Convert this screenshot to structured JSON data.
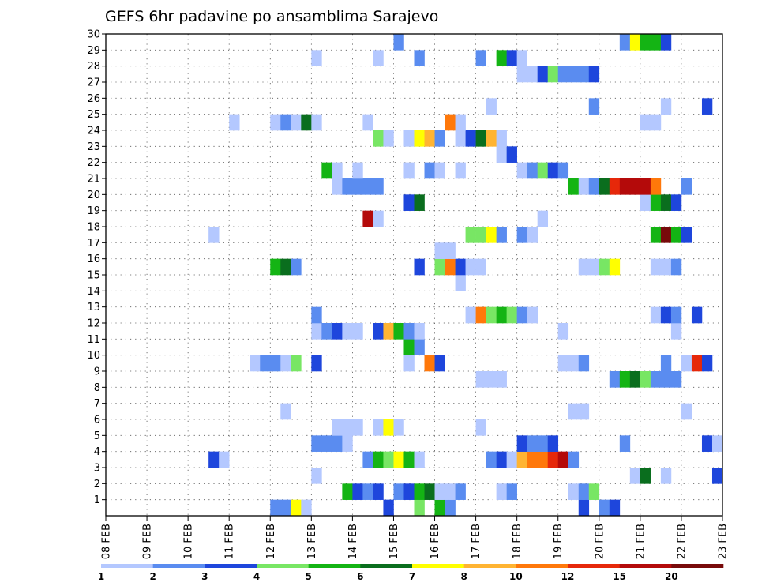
{
  "chart_data": {
    "type": "heatmap",
    "title": "GEFS 6hr padavine po ansamblima Sarajevo",
    "x_tick_labels": [
      "08 FEB",
      "09 FEB",
      "10 FEB",
      "11 FEB",
      "12 FEB",
      "13 FEB",
      "14 FEB",
      "15 FEB",
      "16 FEB",
      "17 FEB",
      "18 FEB",
      "19 FEB",
      "20 FEB",
      "21 FEB",
      "22 FEB",
      "23 FEB"
    ],
    "xlim_days": [
      0,
      15
    ],
    "ylim_members": [
      0,
      30
    ],
    "y_tick_labels": [
      "1",
      "2",
      "3",
      "4",
      "5",
      "6",
      "7",
      "8",
      "9",
      "10",
      "11",
      "12",
      "13",
      "14",
      "15",
      "16",
      "17",
      "18",
      "19",
      "20",
      "21",
      "22",
      "23",
      "24",
      "25",
      "26",
      "27",
      "28",
      "29",
      "30"
    ],
    "grid": true,
    "legend": "bottom",
    "colorbar_labels": [
      "1",
      "2",
      "3",
      "4",
      "5",
      "6",
      "7",
      "8",
      "10",
      "12",
      "15",
      "20"
    ],
    "colors": [
      "#b4c8ff",
      "#5a8cf0",
      "#1e46dc",
      "#78e664",
      "#14b414",
      "#0a6e1e",
      "#ffff00",
      "#ffb432",
      "#ff780a",
      "#e6280a",
      "#b40a0a",
      "#780a0a"
    ],
    "cell_width_days": 0.25,
    "cells": [
      {
        "d": 4.0,
        "m": 0,
        "c": 1
      },
      {
        "d": 4.25,
        "m": 0,
        "c": 1
      },
      {
        "d": 4.5,
        "m": 0,
        "c": 6
      },
      {
        "d": 4.75,
        "m": 0,
        "c": 0
      },
      {
        "d": 6.75,
        "m": 0,
        "c": 2
      },
      {
        "d": 7.5,
        "m": 0,
        "c": 3
      },
      {
        "d": 8.0,
        "m": 0,
        "c": 4
      },
      {
        "d": 8.25,
        "m": 0,
        "c": 1
      },
      {
        "d": 11.5,
        "m": 0,
        "c": 2
      },
      {
        "d": 12.0,
        "m": 0,
        "c": 1
      },
      {
        "d": 12.25,
        "m": 0,
        "c": 2
      },
      {
        "d": 5.75,
        "m": 1,
        "c": 4
      },
      {
        "d": 6.0,
        "m": 1,
        "c": 2
      },
      {
        "d": 6.25,
        "m": 1,
        "c": 1
      },
      {
        "d": 6.5,
        "m": 1,
        "c": 2
      },
      {
        "d": 7.0,
        "m": 1,
        "c": 1
      },
      {
        "d": 7.25,
        "m": 1,
        "c": 2
      },
      {
        "d": 7.5,
        "m": 1,
        "c": 4
      },
      {
        "d": 7.75,
        "m": 1,
        "c": 5
      },
      {
        "d": 8.0,
        "m": 1,
        "c": 0
      },
      {
        "d": 8.25,
        "m": 1,
        "c": 0
      },
      {
        "d": 8.5,
        "m": 1,
        "c": 1
      },
      {
        "d": 9.5,
        "m": 1,
        "c": 0
      },
      {
        "d": 9.75,
        "m": 1,
        "c": 1
      },
      {
        "d": 11.25,
        "m": 1,
        "c": 0
      },
      {
        "d": 11.5,
        "m": 1,
        "c": 1
      },
      {
        "d": 11.75,
        "m": 1,
        "c": 3
      },
      {
        "d": 5.0,
        "m": 2,
        "c": 0
      },
      {
        "d": 12.75,
        "m": 2,
        "c": 0
      },
      {
        "d": 13.0,
        "m": 2,
        "c": 5
      },
      {
        "d": 13.5,
        "m": 2,
        "c": 0
      },
      {
        "d": 14.75,
        "m": 2,
        "c": 2
      },
      {
        "d": 2.5,
        "m": 3,
        "c": 2
      },
      {
        "d": 2.75,
        "m": 3,
        "c": 0
      },
      {
        "d": 6.25,
        "m": 3,
        "c": 1
      },
      {
        "d": 6.5,
        "m": 3,
        "c": 4
      },
      {
        "d": 6.75,
        "m": 3,
        "c": 3
      },
      {
        "d": 7.0,
        "m": 3,
        "c": 6
      },
      {
        "d": 7.25,
        "m": 3,
        "c": 4
      },
      {
        "d": 7.5,
        "m": 3,
        "c": 0
      },
      {
        "d": 9.25,
        "m": 3,
        "c": 1
      },
      {
        "d": 9.5,
        "m": 3,
        "c": 2
      },
      {
        "d": 9.75,
        "m": 3,
        "c": 0
      },
      {
        "d": 10.0,
        "m": 3,
        "c": 7
      },
      {
        "d": 10.25,
        "m": 3,
        "c": 8
      },
      {
        "d": 10.5,
        "m": 3,
        "c": 8
      },
      {
        "d": 10.75,
        "m": 3,
        "c": 9
      },
      {
        "d": 11.0,
        "m": 3,
        "c": 10
      },
      {
        "d": 11.25,
        "m": 3,
        "c": 1
      },
      {
        "d": 5.0,
        "m": 4,
        "c": 1
      },
      {
        "d": 5.25,
        "m": 4,
        "c": 1
      },
      {
        "d": 5.5,
        "m": 4,
        "c": 1
      },
      {
        "d": 5.75,
        "m": 4,
        "c": 0
      },
      {
        "d": 10.0,
        "m": 4,
        "c": 2
      },
      {
        "d": 10.25,
        "m": 4,
        "c": 1
      },
      {
        "d": 10.5,
        "m": 4,
        "c": 1
      },
      {
        "d": 10.75,
        "m": 4,
        "c": 2
      },
      {
        "d": 12.5,
        "m": 4,
        "c": 1
      },
      {
        "d": 14.5,
        "m": 4,
        "c": 2
      },
      {
        "d": 14.75,
        "m": 4,
        "c": 0
      },
      {
        "d": 5.5,
        "m": 5,
        "c": 0
      },
      {
        "d": 5.75,
        "m": 5,
        "c": 0
      },
      {
        "d": 6.0,
        "m": 5,
        "c": 0
      },
      {
        "d": 6.5,
        "m": 5,
        "c": 0
      },
      {
        "d": 6.75,
        "m": 5,
        "c": 6
      },
      {
        "d": 7.0,
        "m": 5,
        "c": 0
      },
      {
        "d": 9.0,
        "m": 5,
        "c": 0
      },
      {
        "d": 4.25,
        "m": 6,
        "c": 0
      },
      {
        "d": 11.25,
        "m": 6,
        "c": 0
      },
      {
        "d": 11.5,
        "m": 6,
        "c": 0
      },
      {
        "d": 14.0,
        "m": 6,
        "c": 0
      },
      {
        "d": 9.0,
        "m": 8,
        "c": 0
      },
      {
        "d": 9.25,
        "m": 8,
        "c": 0
      },
      {
        "d": 9.5,
        "m": 8,
        "c": 0
      },
      {
        "d": 12.25,
        "m": 8,
        "c": 1
      },
      {
        "d": 12.5,
        "m": 8,
        "c": 4
      },
      {
        "d": 12.75,
        "m": 8,
        "c": 5
      },
      {
        "d": 13.0,
        "m": 8,
        "c": 3
      },
      {
        "d": 13.25,
        "m": 8,
        "c": 1
      },
      {
        "d": 13.5,
        "m": 8,
        "c": 1
      },
      {
        "d": 13.75,
        "m": 8,
        "c": 1
      },
      {
        "d": 3.5,
        "m": 9,
        "c": 0
      },
      {
        "d": 3.75,
        "m": 9,
        "c": 1
      },
      {
        "d": 4.0,
        "m": 9,
        "c": 1
      },
      {
        "d": 4.25,
        "m": 9,
        "c": 0
      },
      {
        "d": 4.5,
        "m": 9,
        "c": 3
      },
      {
        "d": 5.0,
        "m": 9,
        "c": 2
      },
      {
        "d": 7.25,
        "m": 9,
        "c": 0
      },
      {
        "d": 7.75,
        "m": 9,
        "c": 8
      },
      {
        "d": 8.0,
        "m": 9,
        "c": 2
      },
      {
        "d": 11.0,
        "m": 9,
        "c": 0
      },
      {
        "d": 11.25,
        "m": 9,
        "c": 0
      },
      {
        "d": 11.5,
        "m": 9,
        "c": 1
      },
      {
        "d": 13.5,
        "m": 9,
        "c": 1
      },
      {
        "d": 14.0,
        "m": 9,
        "c": 0
      },
      {
        "d": 14.25,
        "m": 9,
        "c": 9
      },
      {
        "d": 14.5,
        "m": 9,
        "c": 2
      },
      {
        "d": 7.25,
        "m": 10,
        "c": 4
      },
      {
        "d": 7.5,
        "m": 10,
        "c": 1
      },
      {
        "d": 5.0,
        "m": 11,
        "c": 0
      },
      {
        "d": 5.25,
        "m": 11,
        "c": 1
      },
      {
        "d": 5.5,
        "m": 11,
        "c": 2
      },
      {
        "d": 5.75,
        "m": 11,
        "c": 0
      },
      {
        "d": 6.0,
        "m": 11,
        "c": 0
      },
      {
        "d": 6.5,
        "m": 11,
        "c": 2
      },
      {
        "d": 6.75,
        "m": 11,
        "c": 7
      },
      {
        "d": 7.0,
        "m": 11,
        "c": 4
      },
      {
        "d": 7.25,
        "m": 11,
        "c": 1
      },
      {
        "d": 7.5,
        "m": 11,
        "c": 0
      },
      {
        "d": 11.0,
        "m": 11,
        "c": 0
      },
      {
        "d": 13.75,
        "m": 11,
        "c": 0
      },
      {
        "d": 5.0,
        "m": 12,
        "c": 1
      },
      {
        "d": 8.75,
        "m": 12,
        "c": 0
      },
      {
        "d": 9.0,
        "m": 12,
        "c": 8
      },
      {
        "d": 9.25,
        "m": 12,
        "c": 3
      },
      {
        "d": 9.5,
        "m": 12,
        "c": 4
      },
      {
        "d": 9.75,
        "m": 12,
        "c": 3
      },
      {
        "d": 10.0,
        "m": 12,
        "c": 1
      },
      {
        "d": 10.25,
        "m": 12,
        "c": 0
      },
      {
        "d": 13.25,
        "m": 12,
        "c": 0
      },
      {
        "d": 13.5,
        "m": 12,
        "c": 2
      },
      {
        "d": 13.75,
        "m": 12,
        "c": 1
      },
      {
        "d": 14.25,
        "m": 12,
        "c": 2
      },
      {
        "d": 8.5,
        "m": 14,
        "c": 0
      },
      {
        "d": 4.0,
        "m": 15,
        "c": 4
      },
      {
        "d": 4.25,
        "m": 15,
        "c": 5
      },
      {
        "d": 4.5,
        "m": 15,
        "c": 1
      },
      {
        "d": 7.5,
        "m": 15,
        "c": 2
      },
      {
        "d": 8.0,
        "m": 15,
        "c": 3
      },
      {
        "d": 8.25,
        "m": 15,
        "c": 8
      },
      {
        "d": 8.5,
        "m": 15,
        "c": 2
      },
      {
        "d": 8.75,
        "m": 15,
        "c": 0
      },
      {
        "d": 9.0,
        "m": 15,
        "c": 0
      },
      {
        "d": 11.5,
        "m": 15,
        "c": 0
      },
      {
        "d": 11.75,
        "m": 15,
        "c": 0
      },
      {
        "d": 12.0,
        "m": 15,
        "c": 3
      },
      {
        "d": 12.25,
        "m": 15,
        "c": 6
      },
      {
        "d": 13.25,
        "m": 15,
        "c": 0
      },
      {
        "d": 13.5,
        "m": 15,
        "c": 0
      },
      {
        "d": 13.75,
        "m": 15,
        "c": 1
      },
      {
        "d": 8.0,
        "m": 16,
        "c": 0
      },
      {
        "d": 8.25,
        "m": 16,
        "c": 0
      },
      {
        "d": 2.5,
        "m": 17,
        "c": 0
      },
      {
        "d": 8.75,
        "m": 17,
        "c": 3
      },
      {
        "d": 9.0,
        "m": 17,
        "c": 3
      },
      {
        "d": 9.25,
        "m": 17,
        "c": 6
      },
      {
        "d": 9.5,
        "m": 17,
        "c": 1
      },
      {
        "d": 10.0,
        "m": 17,
        "c": 1
      },
      {
        "d": 10.25,
        "m": 17,
        "c": 0
      },
      {
        "d": 13.25,
        "m": 17,
        "c": 4
      },
      {
        "d": 13.5,
        "m": 17,
        "c": 11
      },
      {
        "d": 13.75,
        "m": 17,
        "c": 4
      },
      {
        "d": 14.0,
        "m": 17,
        "c": 2
      },
      {
        "d": 6.25,
        "m": 18,
        "c": 10
      },
      {
        "d": 6.5,
        "m": 18,
        "c": 0
      },
      {
        "d": 10.5,
        "m": 18,
        "c": 0
      },
      {
        "d": 7.25,
        "m": 19,
        "c": 2
      },
      {
        "d": 7.5,
        "m": 19,
        "c": 5
      },
      {
        "d": 13.0,
        "m": 19,
        "c": 0
      },
      {
        "d": 13.25,
        "m": 19,
        "c": 4
      },
      {
        "d": 13.5,
        "m": 19,
        "c": 5
      },
      {
        "d": 13.75,
        "m": 19,
        "c": 2
      },
      {
        "d": 5.5,
        "m": 20,
        "c": 0
      },
      {
        "d": 5.75,
        "m": 20,
        "c": 1
      },
      {
        "d": 6.0,
        "m": 20,
        "c": 1
      },
      {
        "d": 6.25,
        "m": 20,
        "c": 1
      },
      {
        "d": 6.5,
        "m": 20,
        "c": 1
      },
      {
        "d": 11.25,
        "m": 20,
        "c": 4
      },
      {
        "d": 11.5,
        "m": 20,
        "c": 0
      },
      {
        "d": 11.75,
        "m": 20,
        "c": 1
      },
      {
        "d": 12.0,
        "m": 20,
        "c": 5
      },
      {
        "d": 12.25,
        "m": 20,
        "c": 9
      },
      {
        "d": 12.5,
        "m": 20,
        "c": 10
      },
      {
        "d": 12.75,
        "m": 20,
        "c": 10
      },
      {
        "d": 13.0,
        "m": 20,
        "c": 10
      },
      {
        "d": 13.25,
        "m": 20,
        "c": 8
      },
      {
        "d": 14.0,
        "m": 20,
        "c": 1
      },
      {
        "d": 5.25,
        "m": 21,
        "c": 4
      },
      {
        "d": 5.5,
        "m": 21,
        "c": 0
      },
      {
        "d": 6.0,
        "m": 21,
        "c": 0
      },
      {
        "d": 7.25,
        "m": 21,
        "c": 0
      },
      {
        "d": 7.75,
        "m": 21,
        "c": 1
      },
      {
        "d": 8.0,
        "m": 21,
        "c": 0
      },
      {
        "d": 8.5,
        "m": 21,
        "c": 0
      },
      {
        "d": 10.0,
        "m": 21,
        "c": 0
      },
      {
        "d": 10.25,
        "m": 21,
        "c": 1
      },
      {
        "d": 10.5,
        "m": 21,
        "c": 3
      },
      {
        "d": 10.75,
        "m": 21,
        "c": 2
      },
      {
        "d": 11.0,
        "m": 21,
        "c": 1
      },
      {
        "d": 9.5,
        "m": 22,
        "c": 0
      },
      {
        "d": 9.75,
        "m": 22,
        "c": 2
      },
      {
        "d": 6.5,
        "m": 23,
        "c": 3
      },
      {
        "d": 6.75,
        "m": 23,
        "c": 0
      },
      {
        "d": 7.25,
        "m": 23,
        "c": 0
      },
      {
        "d": 7.5,
        "m": 23,
        "c": 6
      },
      {
        "d": 7.75,
        "m": 23,
        "c": 7
      },
      {
        "d": 8.0,
        "m": 23,
        "c": 1
      },
      {
        "d": 8.5,
        "m": 23,
        "c": 0
      },
      {
        "d": 8.75,
        "m": 23,
        "c": 2
      },
      {
        "d": 9.0,
        "m": 23,
        "c": 5
      },
      {
        "d": 9.25,
        "m": 23,
        "c": 7
      },
      {
        "d": 9.5,
        "m": 23,
        "c": 0
      },
      {
        "d": 3.0,
        "m": 24,
        "c": 0
      },
      {
        "d": 4.0,
        "m": 24,
        "c": 0
      },
      {
        "d": 4.25,
        "m": 24,
        "c": 1
      },
      {
        "d": 4.5,
        "m": 24,
        "c": 0
      },
      {
        "d": 4.75,
        "m": 24,
        "c": 5
      },
      {
        "d": 5.0,
        "m": 24,
        "c": 0
      },
      {
        "d": 6.25,
        "m": 24,
        "c": 0
      },
      {
        "d": 8.25,
        "m": 24,
        "c": 8
      },
      {
        "d": 8.5,
        "m": 24,
        "c": 0
      },
      {
        "d": 13.0,
        "m": 24,
        "c": 0
      },
      {
        "d": 13.25,
        "m": 24,
        "c": 0
      },
      {
        "d": 9.25,
        "m": 25,
        "c": 0
      },
      {
        "d": 11.75,
        "m": 25,
        "c": 1
      },
      {
        "d": 13.5,
        "m": 25,
        "c": 0
      },
      {
        "d": 14.5,
        "m": 25,
        "c": 2
      },
      {
        "d": 10.0,
        "m": 27,
        "c": 0
      },
      {
        "d": 10.25,
        "m": 27,
        "c": 0
      },
      {
        "d": 10.5,
        "m": 27,
        "c": 2
      },
      {
        "d": 10.75,
        "m": 27,
        "c": 3
      },
      {
        "d": 11.0,
        "m": 27,
        "c": 1
      },
      {
        "d": 11.25,
        "m": 27,
        "c": 1
      },
      {
        "d": 11.5,
        "m": 27,
        "c": 1
      },
      {
        "d": 11.75,
        "m": 27,
        "c": 2
      },
      {
        "d": 5.0,
        "m": 28,
        "c": 0
      },
      {
        "d": 6.5,
        "m": 28,
        "c": 0
      },
      {
        "d": 7.5,
        "m": 28,
        "c": 1
      },
      {
        "d": 9.0,
        "m": 28,
        "c": 1
      },
      {
        "d": 9.5,
        "m": 28,
        "c": 4
      },
      {
        "d": 9.75,
        "m": 28,
        "c": 2
      },
      {
        "d": 10.0,
        "m": 28,
        "c": 0
      },
      {
        "d": 7.0,
        "m": 29,
        "c": 1
      },
      {
        "d": 12.5,
        "m": 29,
        "c": 1
      },
      {
        "d": 12.75,
        "m": 29,
        "c": 6
      },
      {
        "d": 13.0,
        "m": 29,
        "c": 4
      },
      {
        "d": 13.25,
        "m": 29,
        "c": 4
      },
      {
        "d": 13.5,
        "m": 29,
        "c": 2
      }
    ]
  }
}
